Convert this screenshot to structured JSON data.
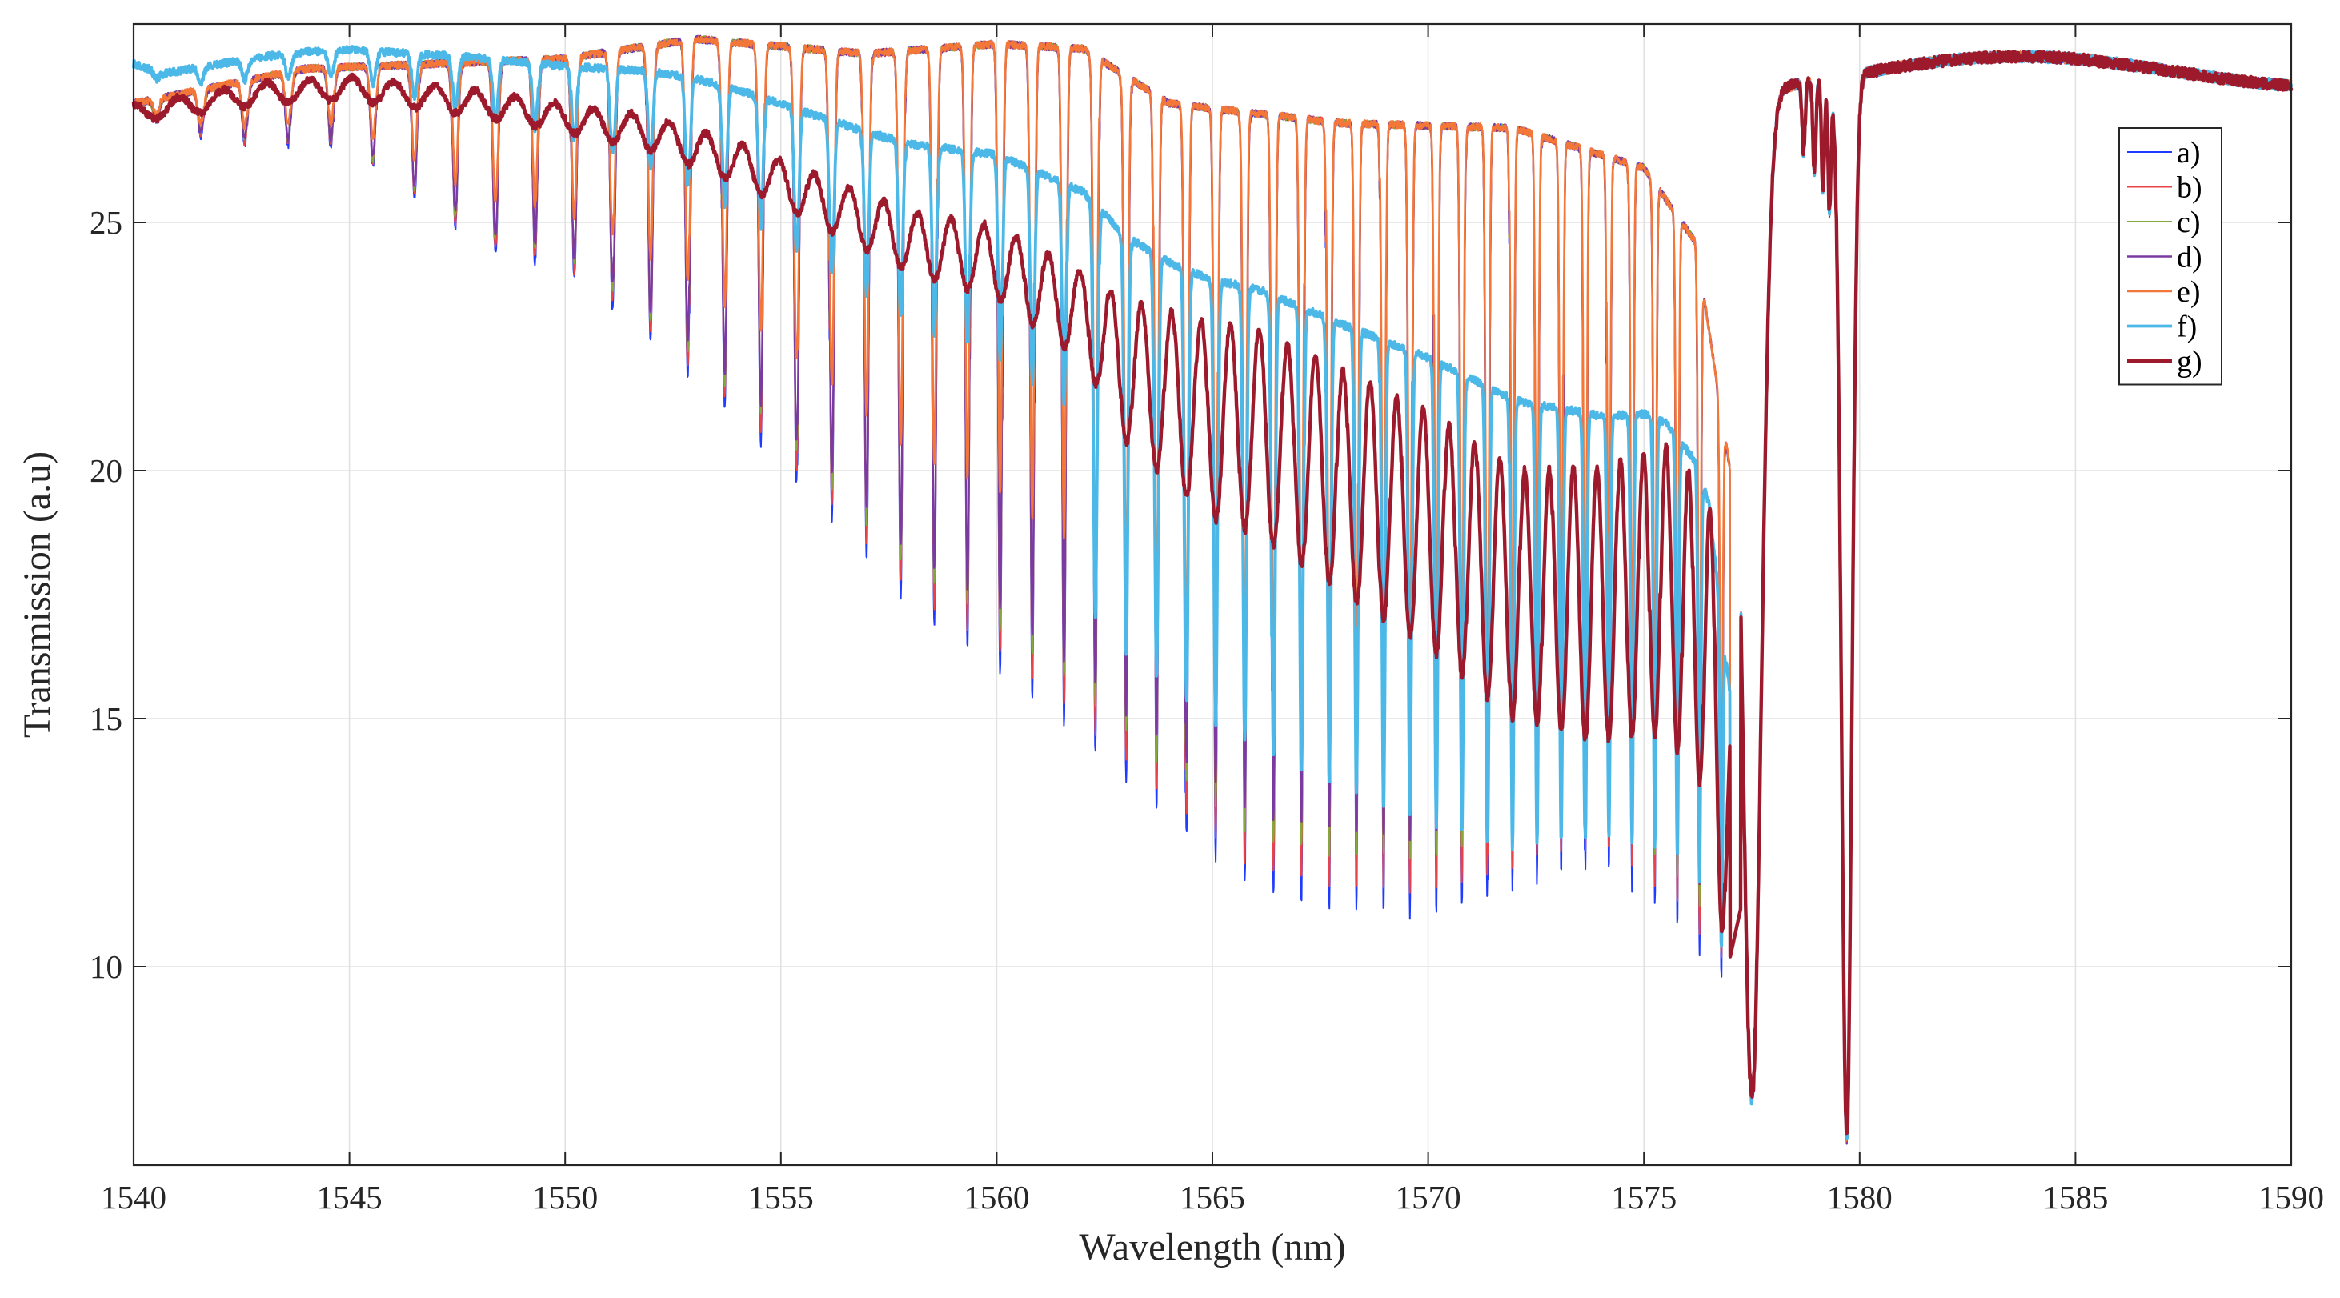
{
  "chart_data": {
    "type": "line",
    "xlabel": "Wavelength (nm)",
    "ylabel": "Transmission (a.u)",
    "xlim": [
      1540,
      1590
    ],
    "ylim": [
      6,
      29
    ],
    "xticks": [
      1540,
      1545,
      1550,
      1555,
      1560,
      1565,
      1570,
      1575,
      1580,
      1585,
      1590
    ],
    "yticks": [
      10,
      15,
      20,
      25
    ],
    "grid": true,
    "legend_position": "top-right",
    "series": [
      {
        "name": "a)",
        "color": "#1f3bff",
        "stroke": 2.0,
        "fringe_depth": 1.0
      },
      {
        "name": "b)",
        "color": "#e8434b",
        "stroke": 2.0,
        "fringe_depth": 0.97
      },
      {
        "name": "c)",
        "color": "#86a83a",
        "stroke": 2.0,
        "fringe_depth": 0.93
      },
      {
        "name": "d)",
        "color": "#7b3aa0",
        "stroke": 2.4,
        "fringe_depth": 0.9
      },
      {
        "name": "e)",
        "color": "#f4773a",
        "stroke": 2.6,
        "fringe_depth": 0.72
      },
      {
        "name": "f)",
        "color": "#4cb8e8",
        "stroke": 3.8,
        "fringe_depth": 0.45
      },
      {
        "name": "g)",
        "color": "#9c1a2c",
        "stroke": 4.4,
        "fringe_depth": 0.22
      }
    ],
    "main_dips": [
      {
        "x": 1577.5,
        "y": 7.4
      },
      {
        "x": 1579.7,
        "y": 6.6
      }
    ],
    "plateau_level": 28.1
  }
}
